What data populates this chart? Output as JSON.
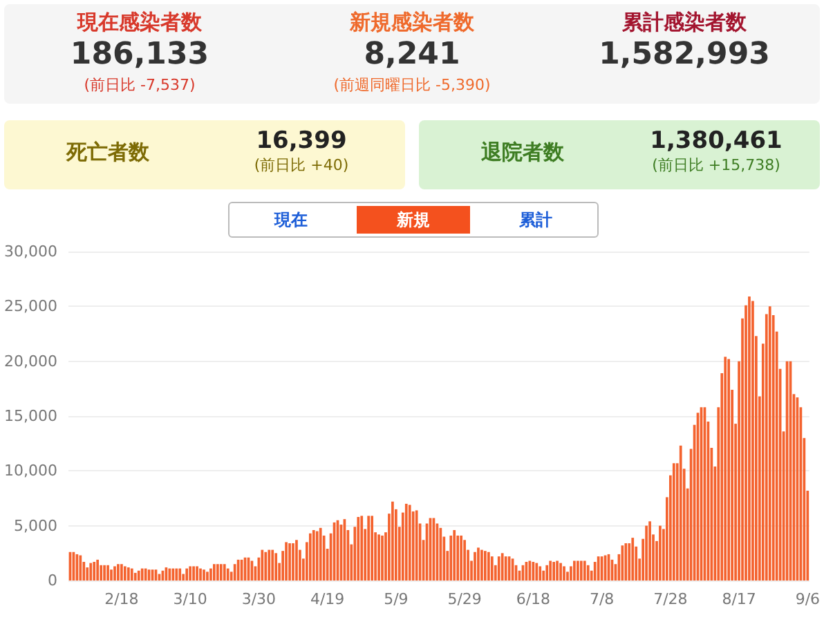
{
  "chart_data": [
    {
      "type": "other",
      "title": "現在感染者数",
      "subtitle": "186,133",
      "annotations": [
        "(前日比 -7,537)"
      ],
      "color": "#d8392b"
    },
    {
      "type": "other",
      "title": "新規感染者数",
      "subtitle": "8,241",
      "annotations": [
        "(前週同曜日比 -5,390)"
      ],
      "color": "#ef6a2c"
    },
    {
      "type": "other",
      "title": "累計感染者数",
      "subtitle": "1,582,993",
      "color": "#a3152f"
    },
    {
      "type": "other",
      "title": "死亡者数",
      "subtitle": "16,399",
      "annotations": [
        "(前日比 +40)"
      ],
      "color": "#7d6b05"
    },
    {
      "type": "other",
      "title": "退院者数",
      "subtitle": "1,380,461",
      "annotations": [
        "(前日比 +15,738)"
      ],
      "color": "#3e7d23"
    },
    {
      "type": "bar",
      "annotations": [
        "現在",
        "新規",
        "累計"
      ],
      "color": "#f4632f",
      "ylim": [
        0,
        30000
      ],
      "yticks": [
        0,
        {
          "value": 5000,
          "label": "5,000"
        },
        {
          "value": 10000,
          "label": "10,000"
        },
        {
          "value": 15000,
          "label": "15,000"
        },
        {
          "value": 20000,
          "label": "20,000"
        },
        {
          "value": 25000,
          "label": "25,000"
        },
        {
          "value": 30000,
          "label": "30,000"
        }
      ],
      "grid": "y",
      "categories": [
        null,
        null,
        null,
        null,
        null,
        null,
        null,
        null,
        null,
        null,
        null,
        null,
        null,
        null,
        null,
        "2/18",
        null,
        null,
        null,
        null,
        null,
        null,
        null,
        null,
        null,
        null,
        null,
        null,
        null,
        null,
        null,
        null,
        null,
        null,
        null,
        "3/10",
        null,
        null,
        null,
        null,
        null,
        null,
        null,
        null,
        null,
        null,
        null,
        null,
        null,
        null,
        null,
        null,
        null,
        null,
        null,
        "3/30",
        null,
        null,
        null,
        null,
        null,
        null,
        null,
        null,
        null,
        null,
        null,
        null,
        null,
        null,
        null,
        null,
        null,
        null,
        null,
        "4/19",
        null,
        null,
        null,
        null,
        null,
        null,
        null,
        null,
        null,
        null,
        null,
        null,
        null,
        null,
        null,
        null,
        null,
        null,
        null,
        "5/9",
        null,
        null,
        null,
        null,
        null,
        null,
        null,
        null,
        null,
        null,
        null,
        null,
        null,
        null,
        null,
        null,
        null,
        null,
        null,
        "5/29",
        null,
        null,
        null,
        null,
        null,
        null,
        null,
        null,
        null,
        null,
        null,
        null,
        null,
        null,
        null,
        null,
        null,
        null,
        null,
        "6/18",
        null,
        null,
        null,
        null,
        null,
        null,
        null,
        null,
        null,
        null,
        null,
        null,
        null,
        null,
        null,
        null,
        null,
        null,
        null,
        "7/8",
        null,
        null,
        null,
        null,
        null,
        null,
        null,
        null,
        null,
        null,
        null,
        null,
        null,
        null,
        null,
        null,
        null,
        null,
        null,
        "7/28",
        null,
        null,
        null,
        null,
        null,
        null,
        null,
        null,
        null,
        null,
        null,
        null,
        null,
        null,
        null,
        null,
        null,
        null,
        null,
        "8/17",
        null,
        null,
        null,
        null,
        null,
        null,
        null,
        null,
        null,
        null,
        null,
        null,
        null,
        null,
        null,
        null,
        null,
        null,
        null,
        "9/6"
      ],
      "values": [
        2600,
        2600,
        2400,
        2300,
        1700,
        1200,
        1600,
        1700,
        1900,
        1400,
        1400,
        1400,
        1000,
        1300,
        1500,
        1500,
        1300,
        1200,
        1100,
        700,
        900,
        1100,
        1100,
        1000,
        1000,
        1000,
        600,
        900,
        1200,
        1100,
        1100,
        1100,
        1100,
        600,
        1100,
        1300,
        1300,
        1300,
        1100,
        1000,
        800,
        1100,
        1500,
        1500,
        1500,
        1500,
        1100,
        800,
        1500,
        1900,
        1900,
        2100,
        2100,
        1800,
        1300,
        2100,
        2800,
        2600,
        2800,
        2800,
        2500,
        1600,
        2700,
        3500,
        3400,
        3400,
        3700,
        2800,
        2000,
        3500,
        4300,
        4600,
        4500,
        4800,
        4100,
        2900,
        4300,
        5300,
        5500,
        5100,
        5600,
        4600,
        3300,
        4900,
        5800,
        5900,
        4700,
        5900,
        5900,
        4400,
        4200,
        4100,
        4400,
        6100,
        7200,
        6500,
        4900,
        6200,
        7000,
        6900,
        6300,
        6400,
        5200,
        3700,
        5200,
        5700,
        5700,
        5200,
        4800,
        4000,
        2700,
        4100,
        4600,
        4100,
        4100,
        3700,
        2800,
        1800,
        2600,
        3000,
        2800,
        2700,
        2600,
        2200,
        1400,
        2200,
        2500,
        2200,
        2200,
        2000,
        1400,
        900,
        1400,
        1700,
        1800,
        1700,
        1600,
        1300,
        900,
        1400,
        1800,
        1700,
        1800,
        1600,
        1300,
        800,
        1300,
        1800,
        1800,
        1800,
        1800,
        1400,
        900,
        1700,
        2200,
        2200,
        2300,
        2400,
        1900,
        1500,
        2400,
        3200,
        3400,
        3400,
        3900,
        3100,
        2000,
        3800,
        5000,
        5400,
        4200,
        3600,
        5000,
        4700,
        7600,
        9600,
        10700,
        10700,
        12300,
        10200,
        8400,
        12000,
        14200,
        15300,
        15800,
        15800,
        14500,
        12100,
        10400,
        15800,
        18900,
        20400,
        20200,
        17400,
        14300,
        20000,
        23900,
        25100,
        25900,
        25500,
        22300,
        16800,
        21600,
        24300,
        25000,
        24200,
        22700,
        19300,
        13600,
        20000,
        20000,
        17000,
        16700,
        15800,
        13000,
        8200
      ]
    }
  ]
}
